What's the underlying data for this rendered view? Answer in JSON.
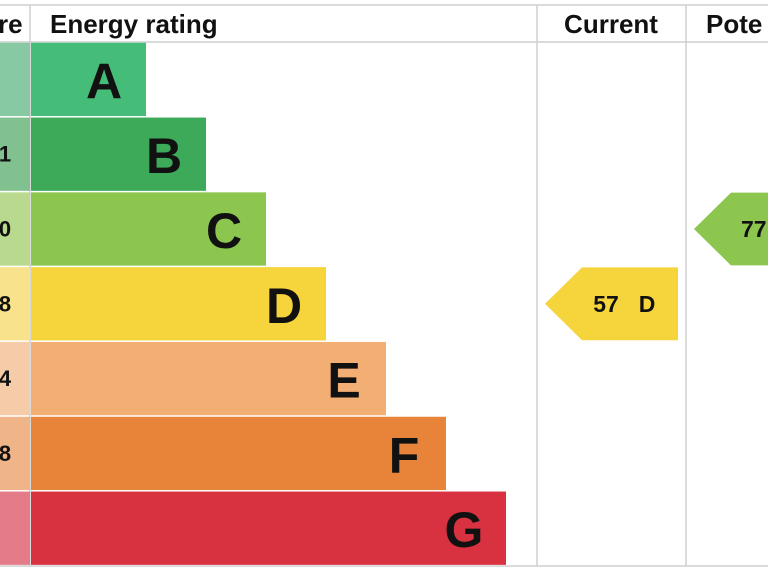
{
  "header": {
    "score": "re",
    "rating": "Energy rating",
    "current": "Current",
    "potential": "Pote"
  },
  "bands": [
    {
      "letter": "A",
      "color": "#45bd78",
      "tint": "#86c9a3"
    },
    {
      "letter": "B",
      "color": "#3daa5a",
      "tint": "#80c18f",
      "score": "1"
    },
    {
      "letter": "C",
      "color": "#8dc64f",
      "tint": "#b9da8e",
      "score": "0"
    },
    {
      "letter": "D",
      "color": "#f6d43b",
      "tint": "#f9e28c",
      "score": "8"
    },
    {
      "letter": "E",
      "color": "#f2ae73",
      "tint": "#f6cca8",
      "score": "4"
    },
    {
      "letter": "F",
      "color": "#e8843a",
      "tint": "#f0b489",
      "score": "8"
    },
    {
      "letter": "G",
      "color": "#d8313f",
      "tint": "#e47b88"
    }
  ],
  "current": {
    "score": 57,
    "rating": "D",
    "band": 3,
    "color": "#f6d43b"
  },
  "potential": {
    "score": 77,
    "band": 2,
    "color": "#8dc64f"
  }
}
